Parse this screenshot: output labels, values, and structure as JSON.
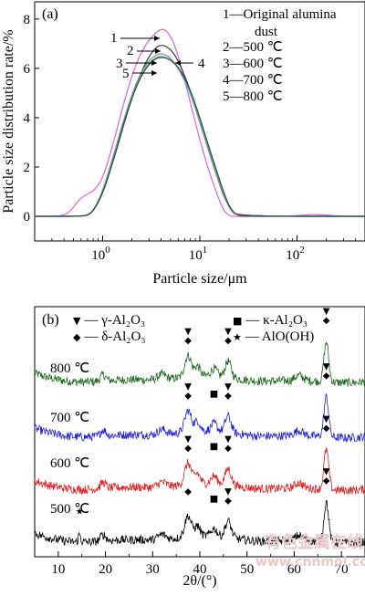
{
  "colors": {
    "original": "#e060e0",
    "t500": "#3a3a3a",
    "t600": "#7a8a8a",
    "t700": "#6ab0a0",
    "t800": "#2a4a4a",
    "xrd_800": "#1f6a1f",
    "xrd_700": "#2020dd",
    "xrd_600": "#dd2020",
    "xrd_500": "#000000",
    "watermark": "#e8c8c8"
  },
  "chart_data": [
    {
      "type": "line",
      "panel": "(a)",
      "xlabel": "Particle size/μm",
      "ylabel": "Particle size distribution rate/%",
      "xscale": "log",
      "xlim": [
        0.2,
        500
      ],
      "ylim": [
        -1,
        8.7
      ],
      "xticks": [
        {
          "value": 1,
          "label": "10",
          "sup": "0"
        },
        {
          "value": 10,
          "label": "10",
          "sup": "1"
        },
        {
          "value": 100,
          "label": "10",
          "sup": "2"
        }
      ],
      "yticks": [
        0,
        2,
        4,
        6,
        8
      ],
      "legend": {
        "placement": "top-right",
        "entries": [
          {
            "key": "1",
            "dash": "—",
            "text": "Original alumina"
          },
          {
            "key": "",
            "dash": "",
            "text": "dust"
          },
          {
            "key": "2",
            "dash": "—",
            "text": "500 ℃"
          },
          {
            "key": "3",
            "dash": "—",
            "text": "600 ℃"
          },
          {
            "key": "4",
            "dash": "—",
            "text": "700 ℃"
          },
          {
            "key": "5",
            "dash": "—",
            "text": "800 ℃"
          }
        ]
      },
      "callouts": [
        "1",
        "2",
        "3",
        "5",
        "4"
      ],
      "series": [
        {
          "key": "1",
          "color_key": "original",
          "x": [
            0.2,
            0.35,
            0.45,
            0.55,
            0.65,
            0.8,
            1.0,
            1.3,
            1.7,
            2.2,
            2.8,
            3.5,
            4.0,
            4.5,
            5.2,
            6.0,
            7.0,
            8.5,
            10,
            12,
            15,
            17,
            19,
            21,
            25,
            40,
            80,
            130,
            160,
            200,
            300,
            500
          ],
          "y": [
            0,
            0,
            0.12,
            0.6,
            0.85,
            1.0,
            1.5,
            3.0,
            4.8,
            6.2,
            7.0,
            7.45,
            7.6,
            7.55,
            7.2,
            6.5,
            5.5,
            4.2,
            3.1,
            2.0,
            0.9,
            0.35,
            0.08,
            0,
            0,
            0,
            0,
            0.06,
            0.07,
            0.05,
            0,
            0
          ]
        },
        {
          "key": "2",
          "color_key": "t500",
          "x": [
            0.2,
            0.6,
            0.7,
            0.8,
            1.0,
            1.3,
            1.7,
            2.2,
            2.8,
            3.5,
            4.0,
            4.5,
            5.2,
            6.0,
            7.0,
            8.5,
            10,
            12,
            15,
            18,
            22,
            25,
            30,
            500
          ],
          "y": [
            0,
            0,
            0.05,
            0.2,
            0.9,
            2.3,
            3.9,
            5.3,
            6.3,
            6.85,
            6.95,
            6.9,
            6.7,
            6.3,
            5.7,
            4.8,
            3.9,
            2.8,
            1.6,
            0.7,
            0.15,
            0.03,
            0,
            0
          ]
        },
        {
          "key": "3",
          "color_key": "t600",
          "x": [
            0.2,
            0.6,
            0.7,
            0.8,
            1.0,
            1.3,
            1.7,
            2.2,
            2.8,
            3.5,
            4.0,
            4.5,
            5.2,
            6.0,
            7.0,
            8.5,
            10,
            12,
            15,
            18,
            21,
            25,
            500
          ],
          "y": [
            0,
            0,
            0.05,
            0.22,
            1.0,
            2.5,
            4.1,
            5.4,
            6.2,
            6.55,
            6.6,
            6.55,
            6.35,
            6.0,
            5.5,
            4.7,
            3.8,
            2.8,
            1.6,
            0.75,
            0.2,
            0,
            0
          ]
        },
        {
          "key": "4",
          "color_key": "t700",
          "x": [
            0.2,
            0.6,
            0.7,
            0.8,
            1.0,
            1.3,
            1.7,
            2.2,
            2.8,
            3.5,
            4.0,
            4.5,
            5.2,
            6.0,
            7.0,
            8.5,
            10,
            12,
            15,
            18,
            21,
            25,
            500
          ],
          "y": [
            0,
            0,
            0.04,
            0.2,
            0.95,
            2.4,
            4.0,
            5.3,
            6.1,
            6.45,
            6.5,
            6.45,
            6.3,
            6.0,
            5.5,
            4.75,
            3.9,
            2.9,
            1.7,
            0.8,
            0.25,
            0,
            0
          ]
        },
        {
          "key": "5",
          "color_key": "t800",
          "x": [
            0.2,
            0.6,
            0.7,
            0.8,
            1.0,
            1.3,
            1.7,
            2.2,
            2.8,
            3.5,
            4.0,
            4.5,
            5.2,
            6.0,
            7.0,
            8.5,
            10,
            12,
            15,
            18,
            21,
            25,
            500
          ],
          "y": [
            0,
            0,
            0.04,
            0.2,
            0.9,
            2.3,
            3.95,
            5.25,
            6.05,
            6.4,
            6.45,
            6.42,
            6.3,
            6.05,
            5.6,
            4.85,
            4.0,
            3.0,
            1.8,
            0.85,
            0.25,
            0,
            0
          ]
        }
      ]
    },
    {
      "type": "line",
      "panel": "(b)",
      "xlabel": "2θ/(°)",
      "xlim": [
        5,
        75
      ],
      "xticks": [
        10,
        20,
        30,
        40,
        50,
        60,
        70
      ],
      "legend": {
        "placement": "top",
        "entries": [
          {
            "symbol": "▼",
            "text": "γ-Al₂O₃"
          },
          {
            "symbol": "■",
            "text": "κ-Al₂O₃"
          },
          {
            "symbol": "◆",
            "text": "δ-Al₂O₃"
          },
          {
            "symbol": "★",
            "text": "AlO(OH)"
          }
        ]
      },
      "series": [
        {
          "name": "800 ℃",
          "color_key": "xrd_800",
          "baseline": 0.7,
          "markers": [
            {
              "x": 37.5,
              "symbols": [
                "▼",
                "◆"
              ]
            },
            {
              "x": 46,
              "symbols": [
                "▼",
                "◆"
              ]
            },
            {
              "x": 66.8,
              "symbols": [
                "▼",
                "◆"
              ]
            }
          ]
        },
        {
          "name": "700 ℃",
          "color_key": "xrd_700",
          "baseline": 0.48,
          "markers": [
            {
              "x": 37.5,
              "symbols": [
                "▼",
                "◆"
              ]
            },
            {
              "x": 43,
              "symbols": [
                "■"
              ]
            },
            {
              "x": 46,
              "symbols": [
                "▼",
                "◆"
              ]
            },
            {
              "x": 66.8,
              "symbols": [
                "▼",
                "◆"
              ]
            }
          ]
        },
        {
          "name": "600 ℃",
          "color_key": "xrd_600",
          "baseline": 0.27,
          "markers": [
            {
              "x": 37.5,
              "symbols": [
                "▼",
                "◆"
              ]
            },
            {
              "x": 43,
              "symbols": [
                "■"
              ]
            },
            {
              "x": 46,
              "symbols": [
                "▼",
                "◆"
              ]
            },
            {
              "x": 66.8,
              "symbols": [
                "▼",
                "◆"
              ]
            }
          ]
        },
        {
          "name": "500 ℃",
          "color_key": "xrd_500",
          "baseline": 0.06,
          "markers": [
            {
              "x": 14.5,
              "symbols": [
                "★"
              ]
            },
            {
              "x": 37.5,
              "symbols": [
                "◆"
              ]
            },
            {
              "x": 43,
              "symbols": [
                "■"
              ]
            },
            {
              "x": 46,
              "symbols": [
                "▼",
                "◆"
              ]
            },
            {
              "x": 66.8,
              "symbols": [
                "▼",
                "◆"
              ]
            }
          ]
        }
      ]
    }
  ],
  "watermark": {
    "line1": "有色金属在线",
    "line2": "www.cnnmol.com"
  }
}
